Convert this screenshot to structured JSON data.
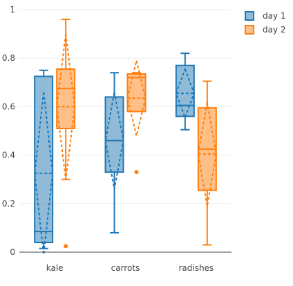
{
  "chart_data": {
    "type": "box",
    "categories": [
      "kale",
      "carrots",
      "radishes"
    ],
    "ylim": [
      0,
      1
    ],
    "yticks": [
      0,
      0.2,
      0.4,
      0.6,
      0.8,
      1
    ],
    "ytick_labels": [
      "0",
      "0.2",
      "0.4",
      "0.6",
      "0.8",
      "1"
    ],
    "grid": true,
    "legend_position": "top-right",
    "box_mean": "sd",
    "series": [
      {
        "name": "day 1",
        "color": "#1f77b4",
        "boxes": [
          {
            "category": "kale",
            "min": 0.015,
            "q1": 0.04,
            "median": 0.085,
            "q3": 0.725,
            "max": 0.75,
            "mean": 0.325,
            "sd": 0.335,
            "outliers": []
          },
          {
            "category": "carrots",
            "min": 0.08,
            "q1": 0.33,
            "median": 0.46,
            "q3": 0.64,
            "max": 0.74,
            "mean": 0.46,
            "sd": 0.2,
            "outliers": []
          },
          {
            "category": "radishes",
            "min": 0.505,
            "q1": 0.56,
            "median": 0.605,
            "q3": 0.77,
            "max": 0.82,
            "mean": 0.655,
            "sd": 0.1,
            "outliers": []
          }
        ]
      },
      {
        "name": "day 2",
        "color": "#ff7f0e",
        "boxes": [
          {
            "category": "kale",
            "min": 0.3,
            "q1": 0.51,
            "median": 0.675,
            "q3": 0.755,
            "max": 0.96,
            "mean": 0.6,
            "sd": 0.3,
            "outliers": [
              0.025
            ]
          },
          {
            "category": "carrots",
            "min": 0.58,
            "q1": 0.58,
            "median": 0.72,
            "q3": 0.735,
            "max": 0.74,
            "mean": 0.635,
            "sd": 0.155,
            "outliers": [
              0.33
            ]
          },
          {
            "category": "radishes",
            "min": 0.03,
            "q1": 0.255,
            "median": 0.425,
            "q3": 0.595,
            "max": 0.705,
            "mean": 0.405,
            "sd": 0.215,
            "outliers": []
          }
        ]
      }
    ]
  }
}
